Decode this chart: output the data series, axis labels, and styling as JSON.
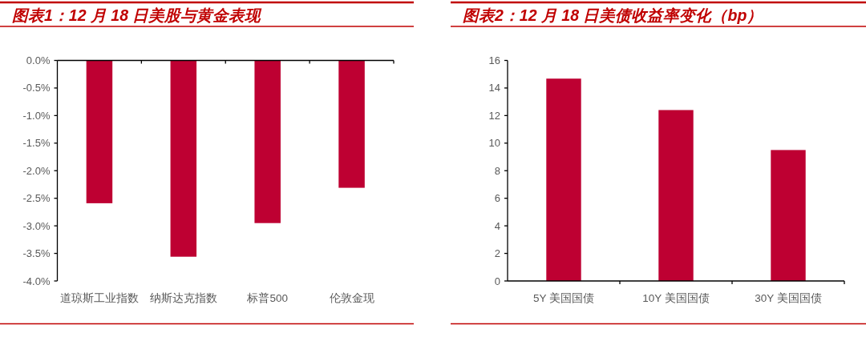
{
  "chart_data": [
    {
      "type": "bar",
      "title": "图表1：12 月 18 日美股与黄金表现",
      "categories": [
        "道琼斯工业指数",
        "纳斯达克指数",
        "标普500",
        "伦敦金现"
      ],
      "values": [
        -2.59,
        -3.56,
        -2.95,
        -2.31
      ],
      "color": "#be0032",
      "ylim": [
        -4,
        0
      ],
      "yticks": [
        {
          "value": -4,
          "label": "-4.0%"
        },
        {
          "value": -3.5,
          "label": "-3.5%"
        },
        {
          "value": -3,
          "label": "-3.0%"
        },
        {
          "value": -2.5,
          "label": "-2.5%"
        },
        {
          "value": -2,
          "label": "-2.0%"
        },
        {
          "value": -1.5,
          "label": "-1.5%"
        },
        {
          "value": -1,
          "label": "-1.0%"
        },
        {
          "value": -0.5,
          "label": "-0.5%"
        },
        {
          "value": 0,
          "label": "0.0%"
        }
      ]
    },
    {
      "type": "bar",
      "title": "图表2：12 月 18 日美债收益率变化（bp）",
      "categories": [
        "5Y 美国国债",
        "10Y 美国国债",
        "30Y 美国国债"
      ],
      "values": [
        14.68,
        12.4,
        9.5
      ],
      "color": "#be0032",
      "ylim": [
        0,
        16
      ],
      "yticks": [
        0,
        2,
        4,
        6,
        8,
        10,
        12,
        14,
        16
      ]
    }
  ]
}
